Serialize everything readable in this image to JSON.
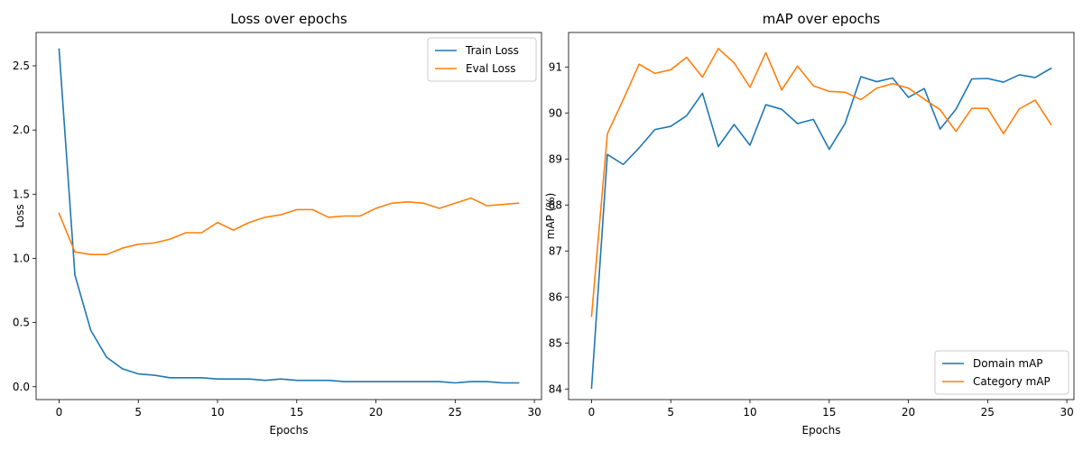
{
  "colors": {
    "blue": "#1f77b4",
    "orange": "#ff7f0e"
  },
  "chart_data": [
    {
      "type": "line",
      "title": "Loss over epochs",
      "xlabel": "Epochs",
      "ylabel": "Loss",
      "xlim": [
        -1.45,
        30.45
      ],
      "ylim": [
        -0.1,
        2.76
      ],
      "xticks": [
        0,
        5,
        10,
        15,
        20,
        25,
        30
      ],
      "yticks": [
        0.0,
        0.5,
        1.0,
        1.5,
        2.0,
        2.5
      ],
      "ytick_labels": [
        "0.0",
        "0.5",
        "1.0",
        "1.5",
        "2.0",
        "2.5"
      ],
      "legend_position": "top-right",
      "x": [
        0,
        1,
        2,
        3,
        4,
        5,
        6,
        7,
        8,
        9,
        10,
        11,
        12,
        13,
        14,
        15,
        16,
        17,
        18,
        19,
        20,
        21,
        22,
        23,
        24,
        25,
        26,
        27,
        28,
        29
      ],
      "series": [
        {
          "name": "Train Loss",
          "color": "#1f77b4",
          "values": [
            2.63,
            0.87,
            0.44,
            0.23,
            0.14,
            0.1,
            0.09,
            0.07,
            0.07,
            0.07,
            0.06,
            0.06,
            0.06,
            0.05,
            0.06,
            0.05,
            0.05,
            0.05,
            0.04,
            0.04,
            0.04,
            0.04,
            0.04,
            0.04,
            0.04,
            0.03,
            0.04,
            0.04,
            0.03,
            0.03
          ]
        },
        {
          "name": "Eval Loss",
          "color": "#ff7f0e",
          "values": [
            1.35,
            1.05,
            1.03,
            1.03,
            1.08,
            1.11,
            1.12,
            1.15,
            1.2,
            1.2,
            1.28,
            1.22,
            1.28,
            1.32,
            1.34,
            1.38,
            1.38,
            1.32,
            1.33,
            1.33,
            1.39,
            1.43,
            1.44,
            1.43,
            1.39,
            1.43,
            1.47,
            1.41,
            1.42,
            1.43
          ]
        }
      ]
    },
    {
      "type": "line",
      "title": "mAP over epochs",
      "xlabel": "Epochs",
      "ylabel": "mAP (%)",
      "xlim": [
        -1.45,
        30.45
      ],
      "ylim": [
        83.77,
        91.75
      ],
      "xticks": [
        0,
        5,
        10,
        15,
        20,
        25,
        30
      ],
      "yticks": [
        84,
        85,
        86,
        87,
        88,
        89,
        90,
        91
      ],
      "ytick_labels": [
        "84",
        "85",
        "86",
        "87",
        "88",
        "89",
        "90",
        "91"
      ],
      "legend_position": "bottom-right",
      "x": [
        0,
        1,
        2,
        3,
        4,
        5,
        6,
        7,
        8,
        9,
        10,
        11,
        12,
        13,
        14,
        15,
        16,
        17,
        18,
        19,
        20,
        21,
        22,
        23,
        24,
        25,
        26,
        27,
        28,
        29
      ],
      "series": [
        {
          "name": "Domain mAP",
          "color": "#1f77b4",
          "values": [
            84.02,
            89.1,
            88.88,
            89.24,
            89.64,
            89.71,
            89.94,
            90.43,
            89.27,
            89.75,
            89.3,
            90.18,
            90.08,
            89.77,
            89.86,
            89.21,
            89.77,
            90.79,
            90.68,
            90.76,
            90.34,
            90.53,
            89.65,
            90.08,
            90.74,
            90.75,
            90.67,
            90.83,
            90.77,
            90.97
          ]
        },
        {
          "name": "Category mAP",
          "color": "#ff7f0e",
          "values": [
            85.58,
            89.55,
            90.29,
            91.06,
            90.86,
            90.94,
            91.21,
            90.78,
            91.4,
            91.09,
            90.56,
            91.31,
            90.5,
            91.02,
            90.59,
            90.47,
            90.45,
            90.29,
            90.54,
            90.64,
            90.54,
            90.3,
            90.07,
            89.6,
            90.1,
            90.1,
            89.55,
            90.09,
            90.28,
            89.75
          ]
        }
      ]
    }
  ]
}
